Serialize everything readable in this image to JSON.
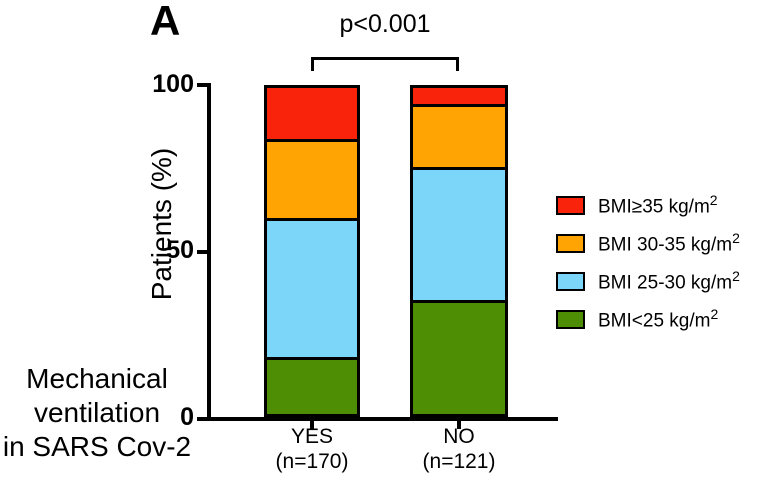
{
  "panel_label": "A",
  "significance": {
    "text": "p<0.001"
  },
  "y_axis": {
    "title": "Patients (%)",
    "tick_100": "100",
    "tick_50": "50",
    "tick_0": "0"
  },
  "x_axis": {
    "group_title_line1": "Mechanical",
    "group_title_line2": "ventilation",
    "group_title_line3": "in SARS Cov-2",
    "categories": [
      {
        "label": "YES",
        "n_label": "(n=170)"
      },
      {
        "label": "NO",
        "n_label": "(n=121)"
      }
    ]
  },
  "legend": {
    "items": [
      {
        "label_base": "BMI≥35 kg/m",
        "label_sup": "2",
        "color": "#f8230a"
      },
      {
        "label_base": "BMI 30-35 kg/m",
        "label_sup": "2",
        "color": "#ffa402"
      },
      {
        "label_base": "BMI 25-30 kg/m",
        "label_sup": "2",
        "color": "#7cd6fa"
      },
      {
        "label_base": "BMI<25 kg/m",
        "label_sup": "2",
        "color": "#4e8e04"
      }
    ]
  },
  "chart_data": {
    "type": "bar",
    "subtype": "stacked_percent",
    "categories": [
      "YES (n=170)",
      "NO (n=121)"
    ],
    "series": [
      {
        "name": "BMI<25 kg/m²",
        "color": "#4e8e04",
        "values": [
          17,
          35
        ]
      },
      {
        "name": "BMI 25-30 kg/m²",
        "color": "#7cd6fa",
        "values": [
          43,
          41
        ]
      },
      {
        "name": "BMI 30-35 kg/m²",
        "color": "#ffa402",
        "values": [
          24,
          19
        ]
      },
      {
        "name": "BMI≥35 kg/m²",
        "color": "#f8230a",
        "values": [
          16,
          5
        ]
      }
    ],
    "stack_order_note": "series listed bottom to top",
    "ylabel": "Patients (%)",
    "ylim": [
      0,
      100
    ],
    "yticks": [
      0,
      50,
      100
    ],
    "annotation": "p<0.001 between YES and NO",
    "legend_position": "right",
    "grid": false,
    "group_axis_title": "Mechanical ventilation in SARS Cov-2"
  }
}
